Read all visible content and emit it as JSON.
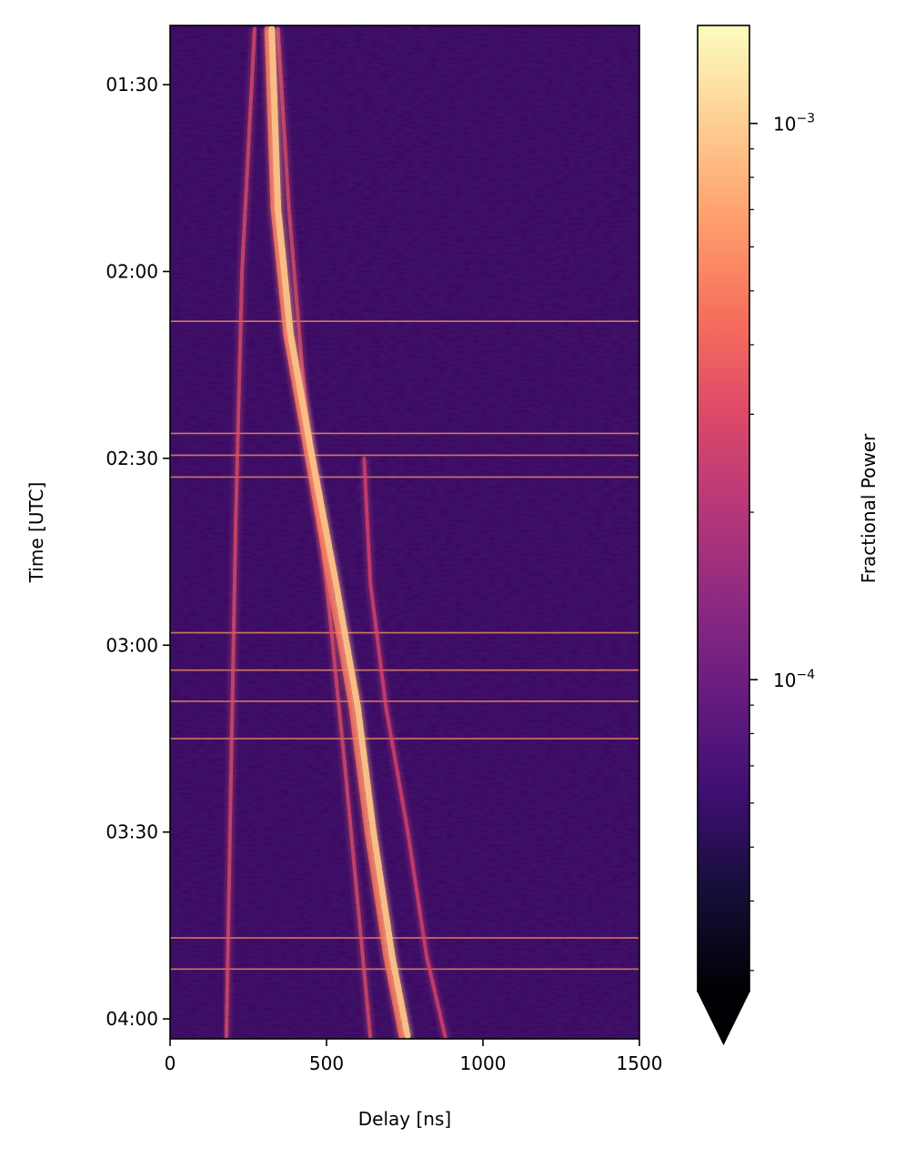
{
  "chart_data": {
    "type": "heatmap",
    "title": "",
    "xlabel": "Delay [ns]",
    "ylabel": "Time [UTC]",
    "x_range": [
      0,
      1500
    ],
    "x_ticks": [
      {
        "value": 0,
        "label": "0"
      },
      {
        "value": 500,
        "label": "500"
      },
      {
        "value": 1000,
        "label": "1000"
      },
      {
        "value": 1500,
        "label": "1500"
      }
    ],
    "y_range_minutes": [
      80.5,
      243.2
    ],
    "y_ticks": [
      {
        "value": 90,
        "label": "01:30"
      },
      {
        "value": 120,
        "label": "02:00"
      },
      {
        "value": 150,
        "label": "02:30"
      },
      {
        "value": 180,
        "label": "03:00"
      },
      {
        "value": 210,
        "label": "03:30"
      },
      {
        "value": 240,
        "label": "04:00"
      }
    ],
    "colormap": "magma",
    "colorbar": {
      "label": "Fractional Power",
      "scale": "log",
      "range": [
        2.75e-05,
        0.0015
      ],
      "extend": "min",
      "major_ticks": [
        {
          "value": 0.0001,
          "base": "10",
          "exp": "−4"
        },
        {
          "value": 0.001,
          "base": "10",
          "exp": "−3"
        }
      ],
      "minor_ticks": [
        3e-05,
        4e-05,
        5e-05,
        6e-05,
        7e-05,
        8e-05,
        9e-05,
        0.0002,
        0.0003,
        0.0004,
        0.0005,
        0.0006,
        0.0007,
        0.0008,
        0.0009
      ]
    },
    "features": {
      "main_track": [
        [
          81,
          325
        ],
        [
          110,
          345
        ],
        [
          130,
          385
        ],
        [
          150,
          455
        ],
        [
          170,
          530
        ],
        [
          190,
          600
        ],
        [
          210,
          650
        ],
        [
          230,
          710
        ],
        [
          243,
          760
        ]
      ],
      "secondary_track": [
        [
          81,
          310
        ],
        [
          110,
          330
        ],
        [
          130,
          370
        ],
        [
          150,
          440
        ],
        [
          170,
          510
        ],
        [
          190,
          580
        ],
        [
          210,
          630
        ],
        [
          230,
          690
        ],
        [
          243,
          740
        ]
      ],
      "early_tracks": [
        [
          [
            81,
            270
          ],
          [
            120,
            230
          ],
          [
            160,
            210
          ],
          [
            200,
            195
          ],
          [
            243,
            180
          ]
        ],
        [
          [
            81,
            345
          ],
          [
            110,
            380
          ],
          [
            140,
            430
          ],
          [
            170,
            500
          ],
          [
            200,
            560
          ],
          [
            243,
            640
          ]
        ]
      ],
      "far_track": [
        [
          150,
          620
        ],
        [
          170,
          640
        ],
        [
          190,
          690
        ],
        [
          210,
          760
        ],
        [
          230,
          820
        ],
        [
          243,
          880
        ]
      ],
      "horizontal_lines_minutes": [
        128,
        146,
        149.5,
        153,
        178,
        184,
        189,
        195,
        227,
        232
      ]
    }
  }
}
